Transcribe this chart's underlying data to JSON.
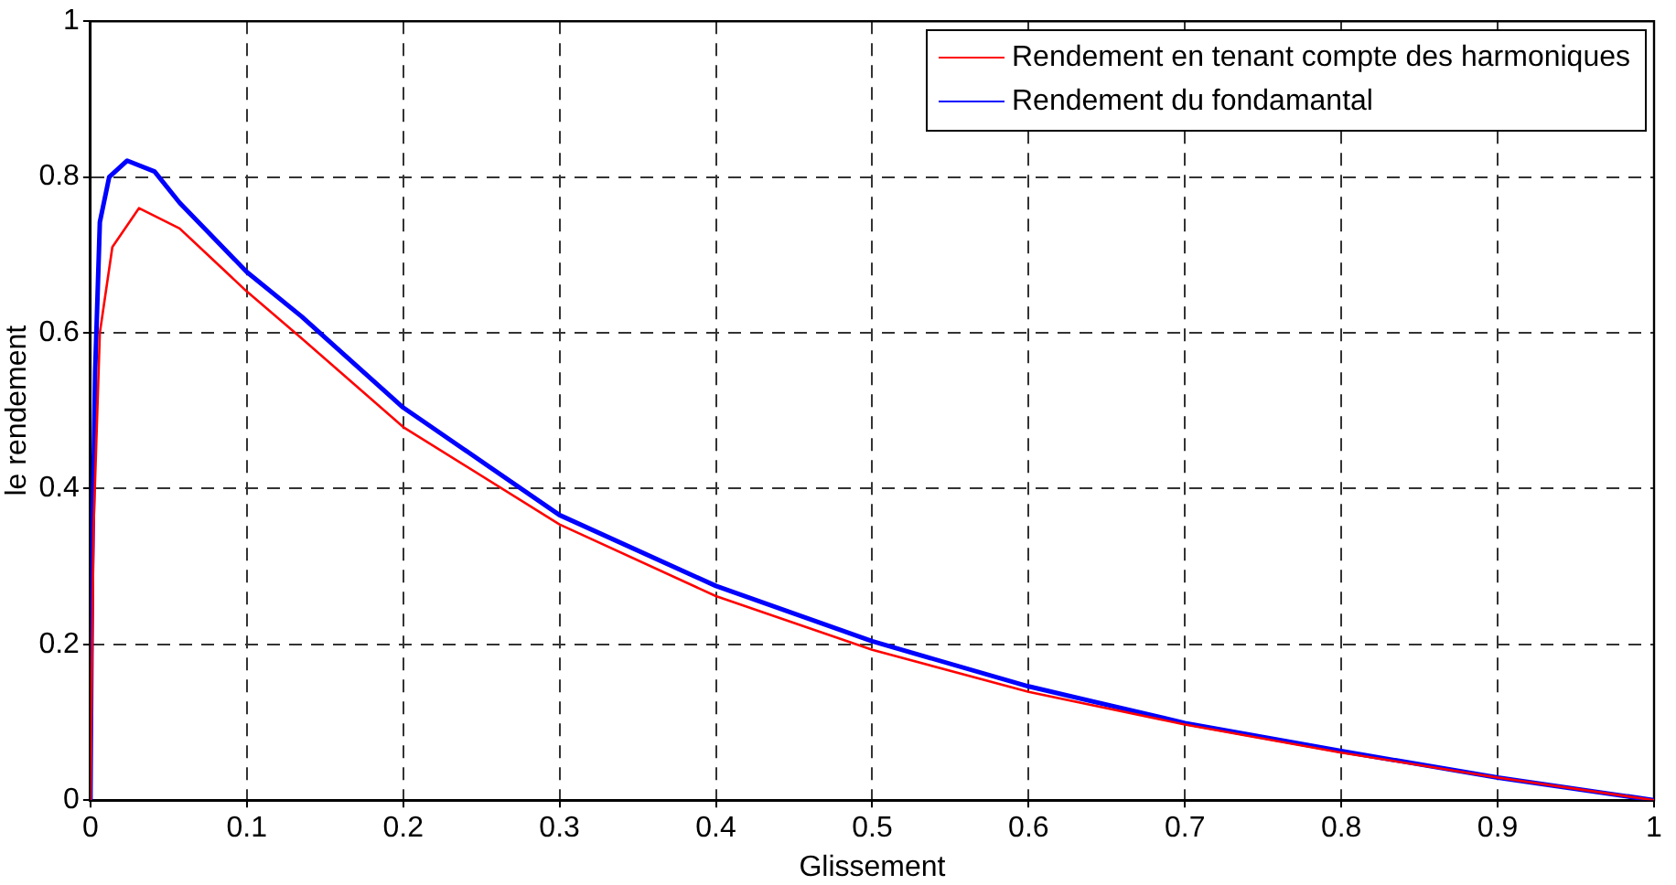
{
  "chart_data": {
    "type": "line",
    "xlabel": "Glissement",
    "ylabel": "le rendement",
    "xlim": [
      0,
      1
    ],
    "xticks": [
      0,
      0.1,
      0.2,
      0.3,
      0.4,
      0.5,
      0.6,
      0.7,
      0.8,
      0.9,
      1
    ],
    "ylim": [
      0,
      1
    ],
    "yticks": [
      0,
      0.2,
      0.4,
      0.6,
      0.8,
      1
    ],
    "grid": true,
    "legend": "top right",
    "line_style": "solid",
    "marker": "none",
    "series": [
      {
        "name": "Rendement en tenant compte des harmoniques",
        "color": "#ff0000",
        "x": [
          0,
          0.002,
          0.006,
          0.014,
          0.031,
          0.057,
          0.1,
          0.135,
          0.2,
          0.3,
          0.4,
          0.5,
          0.6,
          0.7,
          0.8,
          0.9,
          1
        ],
        "values": [
          0,
          0.35,
          0.6,
          0.71,
          0.76,
          0.734,
          0.653,
          0.593,
          0.479,
          0.354,
          0.262,
          0.193,
          0.139,
          0.097,
          0.061,
          0.029,
          0
        ]
      },
      {
        "name": "Rendement du fondamantal",
        "color": "#0000ff",
        "x": [
          0,
          0.001,
          0.003,
          0.006,
          0.012,
          0.0235,
          0.041,
          0.057,
          0.1,
          0.135,
          0.2,
          0.3,
          0.4,
          0.5,
          0.6,
          0.7,
          0.8,
          0.9,
          1
        ],
        "values": [
          0,
          0.3,
          0.55,
          0.742,
          0.8,
          0.821,
          0.807,
          0.767,
          0.678,
          0.621,
          0.504,
          0.366,
          0.275,
          0.204,
          0.146,
          0.099,
          0.063,
          0.029,
          0
        ]
      }
    ]
  }
}
